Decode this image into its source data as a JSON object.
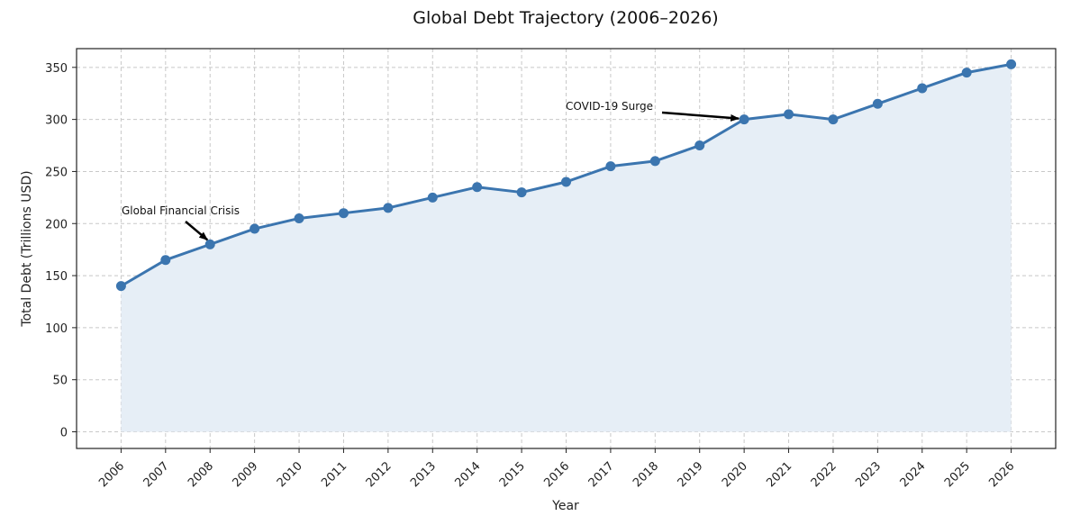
{
  "chart_data": {
    "type": "line",
    "title": "Global Debt Trajectory (2006–2026)",
    "xlabel": "Year",
    "ylabel": "Total Debt (Trillions USD)",
    "x": [
      2006,
      2007,
      2008,
      2009,
      2010,
      2011,
      2012,
      2013,
      2014,
      2015,
      2016,
      2017,
      2018,
      2019,
      2020,
      2021,
      2022,
      2023,
      2024,
      2025,
      2026
    ],
    "series": [
      {
        "values": [
          140,
          165,
          180,
          195,
          205,
          210,
          215,
          225,
          235,
          230,
          240,
          255,
          260,
          275,
          300,
          305,
          300,
          315,
          330,
          345,
          353
        ]
      }
    ],
    "yticks": [
      0,
      50,
      100,
      150,
      200,
      250,
      300,
      350
    ],
    "ylim": [
      -16,
      368
    ],
    "grid": true,
    "fill_under_line": true,
    "annotations": [
      {
        "text": "Global Financial Crisis",
        "x": 2008,
        "y": 180
      },
      {
        "text": "COVID-19 Surge",
        "x": 2020,
        "y": 300
      }
    ],
    "colors": {
      "line": "#3b75af",
      "fill": "#e6eef6",
      "text": "#111111"
    }
  }
}
